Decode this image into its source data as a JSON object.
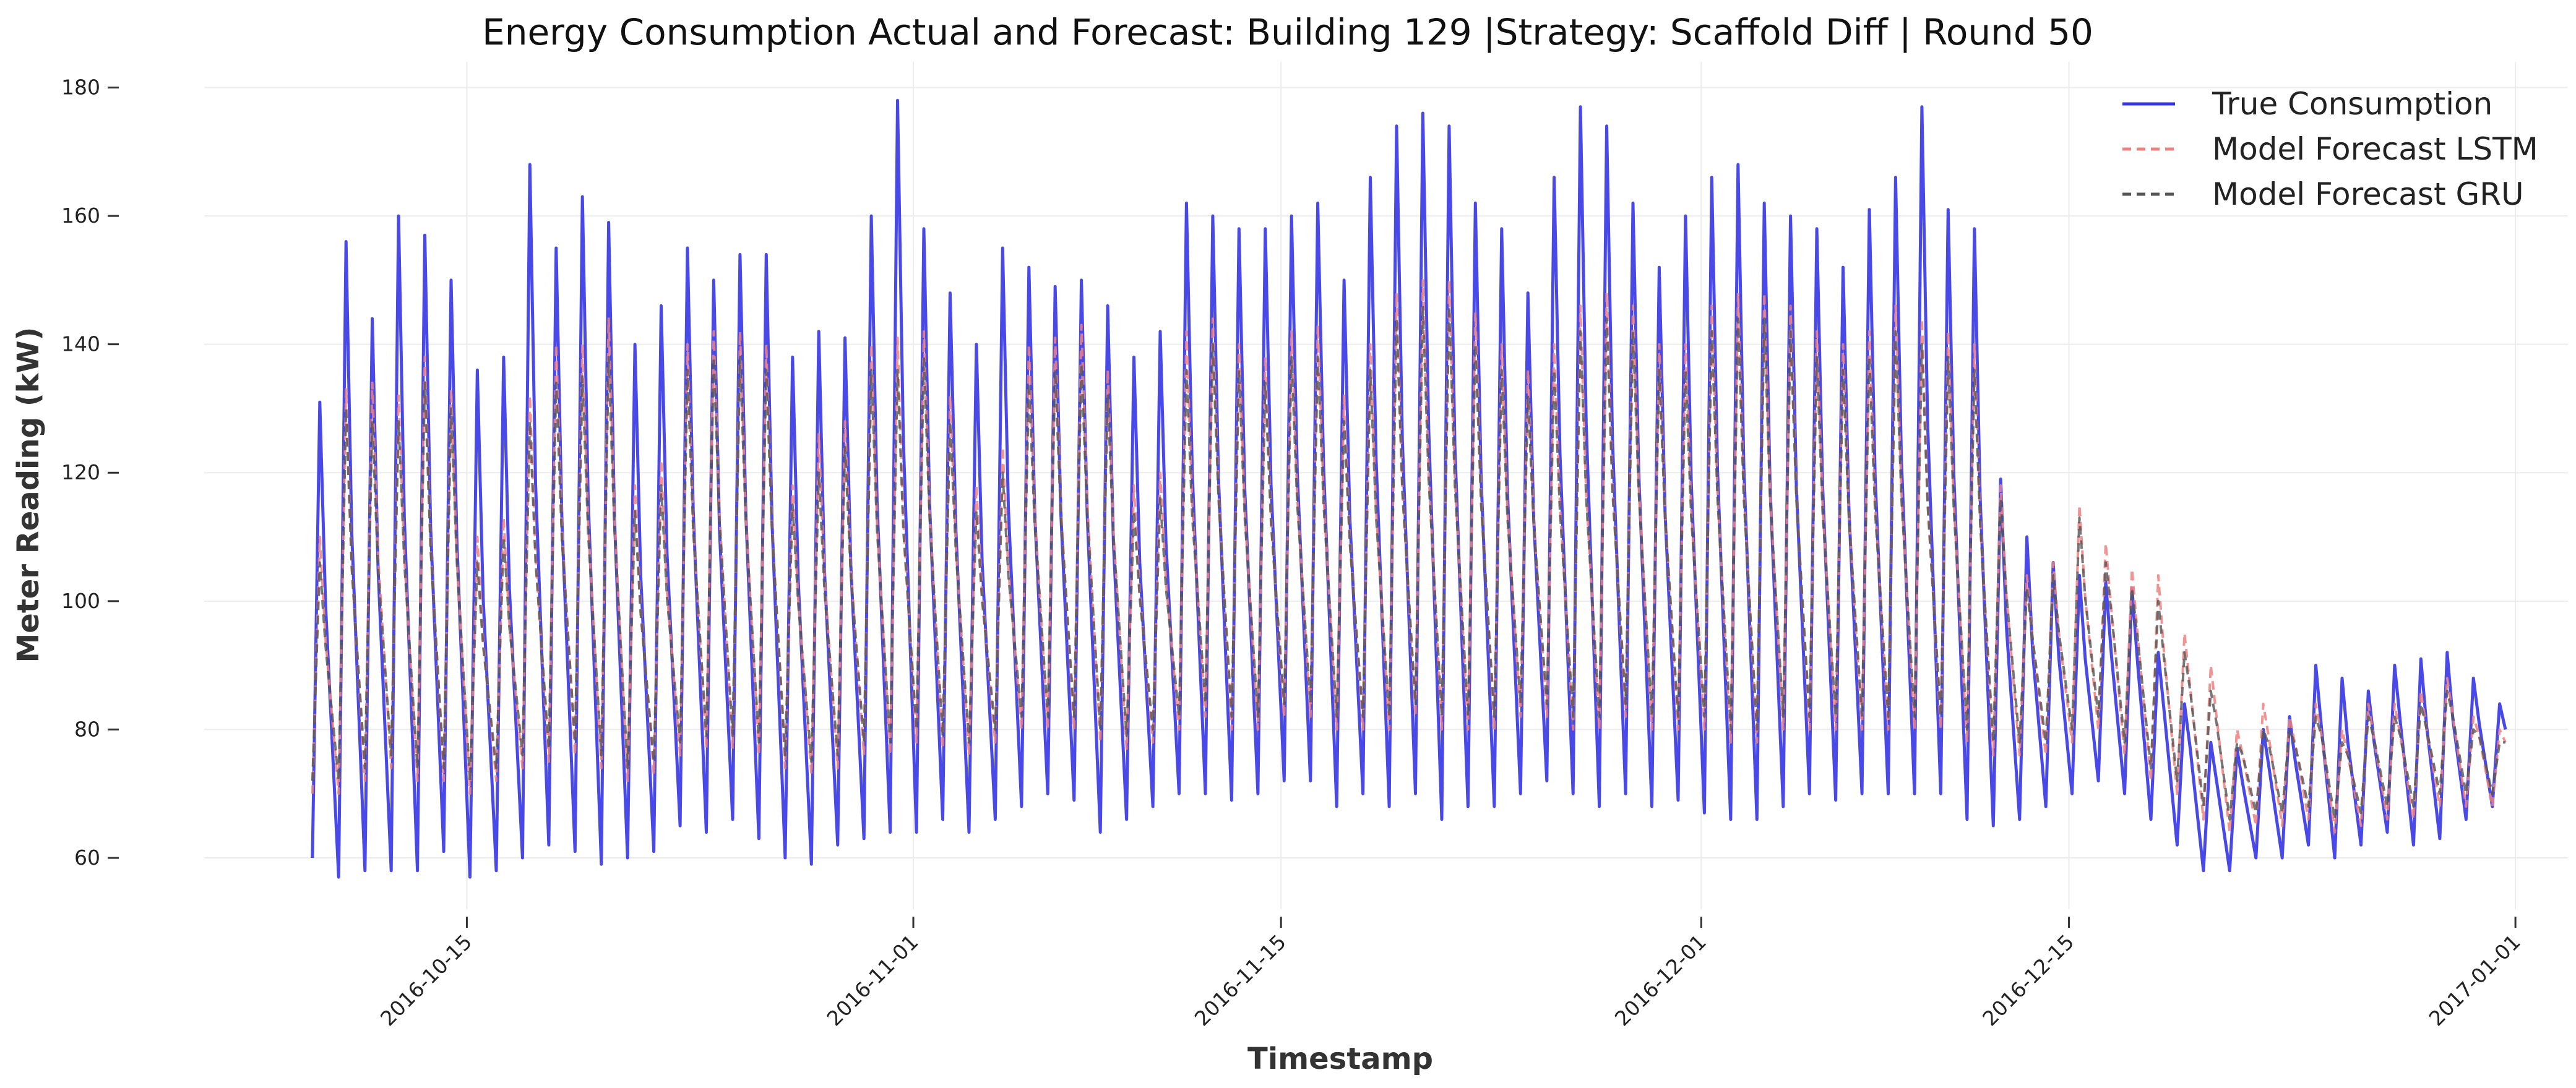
{
  "chart_data": {
    "type": "line",
    "title": "Energy Consumption Actual and Forecast: Building 129 |Strategy: Scaffold Diff | Round 50",
    "xlabel": "Timestamp",
    "ylabel": "Meter Reading (kW)",
    "x_range": [
      "2016-10-05",
      "2017-01-03"
    ],
    "ylim": [
      52,
      184
    ],
    "grid": true,
    "legend_position": "top-right",
    "x_ticks": [
      "2016-10-15",
      "2016-11-01",
      "2016-11-15",
      "2016-12-01",
      "2016-12-15",
      "2017-01-01"
    ],
    "y_ticks": [
      60,
      80,
      100,
      120,
      140,
      160,
      180
    ],
    "series": [
      {
        "name": "True Consumption",
        "color": "#3535e6",
        "style": "solid",
        "x": [
          "2016-10-09",
          "2016-10-10",
          "2016-10-11",
          "2016-10-12",
          "2016-10-13",
          "2016-10-14",
          "2016-10-15",
          "2016-10-16",
          "2016-10-17",
          "2016-10-18",
          "2016-10-19",
          "2016-10-20",
          "2016-10-21",
          "2016-10-22",
          "2016-10-23",
          "2016-10-24",
          "2016-10-25",
          "2016-10-26",
          "2016-10-27",
          "2016-10-28",
          "2016-10-29",
          "2016-10-30",
          "2016-10-31",
          "2016-11-01",
          "2016-11-02",
          "2016-11-03",
          "2016-11-04",
          "2016-11-05",
          "2016-11-06",
          "2016-11-07",
          "2016-11-08",
          "2016-11-09",
          "2016-11-10",
          "2016-11-11",
          "2016-11-12",
          "2016-11-13",
          "2016-11-14",
          "2016-11-15",
          "2016-11-16",
          "2016-11-17",
          "2016-11-18",
          "2016-11-19",
          "2016-11-20",
          "2016-11-21",
          "2016-11-22",
          "2016-11-23",
          "2016-11-24",
          "2016-11-25",
          "2016-11-26",
          "2016-11-27",
          "2016-11-28",
          "2016-11-29",
          "2016-11-30",
          "2016-12-01",
          "2016-12-02",
          "2016-12-03",
          "2016-12-04",
          "2016-12-05",
          "2016-12-06",
          "2016-12-07",
          "2016-12-08",
          "2016-12-09",
          "2016-12-10",
          "2016-12-11",
          "2016-12-12",
          "2016-12-13",
          "2016-12-14",
          "2016-12-15",
          "2016-12-16",
          "2016-12-17",
          "2016-12-18",
          "2016-12-19",
          "2016-12-20",
          "2016-12-21",
          "2016-12-22",
          "2016-12-23",
          "2016-12-24",
          "2016-12-25",
          "2016-12-26",
          "2016-12-27",
          "2016-12-28",
          "2016-12-29",
          "2016-12-30",
          "2016-12-31"
        ],
        "peaks": [
          131,
          156,
          144,
          160,
          157,
          150,
          136,
          138,
          168,
          155,
          163,
          159,
          140,
          146,
          155,
          150,
          154,
          154,
          138,
          142,
          141,
          160,
          178,
          158,
          148,
          140,
          155,
          152,
          149,
          150,
          146,
          138,
          142,
          162,
          160,
          158,
          158,
          160,
          162,
          150,
          166,
          174,
          176,
          174,
          162,
          158,
          148,
          166,
          177,
          174,
          162,
          152,
          160,
          166,
          168,
          162,
          160,
          158,
          152,
          161,
          166,
          177,
          161,
          158,
          119,
          110,
          106,
          104,
          103,
          102,
          92,
          84,
          78,
          77,
          80,
          82,
          90,
          88,
          86,
          90,
          91,
          92,
          88,
          84
        ],
        "troughs": [
          60,
          57,
          58,
          58,
          58,
          61,
          57,
          58,
          60,
          62,
          61,
          59,
          60,
          61,
          65,
          64,
          66,
          63,
          60,
          59,
          62,
          63,
          64,
          64,
          66,
          64,
          66,
          68,
          70,
          69,
          64,
          66,
          68,
          70,
          70,
          69,
          70,
          72,
          72,
          68,
          70,
          68,
          70,
          66,
          68,
          68,
          70,
          72,
          70,
          68,
          70,
          68,
          69,
          67,
          66,
          66,
          68,
          70,
          69,
          70,
          70,
          70,
          70,
          66,
          65,
          66,
          68,
          70,
          72,
          70,
          66,
          62,
          58,
          58,
          60,
          60,
          62,
          60,
          62,
          64,
          62,
          63,
          66,
          68
        ]
      },
      {
        "name": "Model Forecast LSTM",
        "color": "#f08080",
        "style": "dashed",
        "x": [
          "2016-10-09",
          "2016-10-10",
          "2016-10-11",
          "2016-10-12",
          "2016-10-13",
          "2016-10-14",
          "2016-10-15",
          "2016-10-16",
          "2016-10-17",
          "2016-10-18",
          "2016-10-19",
          "2016-10-20",
          "2016-10-21",
          "2016-10-22",
          "2016-10-23",
          "2016-10-24",
          "2016-10-25",
          "2016-10-26",
          "2016-10-27",
          "2016-10-28",
          "2016-10-29",
          "2016-10-30",
          "2016-10-31",
          "2016-11-01",
          "2016-11-02",
          "2016-11-03",
          "2016-11-04",
          "2016-11-05",
          "2016-11-06",
          "2016-11-07",
          "2016-11-08",
          "2016-11-09",
          "2016-11-10",
          "2016-11-11",
          "2016-11-12",
          "2016-11-13",
          "2016-11-14",
          "2016-11-15",
          "2016-11-16",
          "2016-11-17",
          "2016-11-18",
          "2016-11-19",
          "2016-11-20",
          "2016-11-21",
          "2016-11-22",
          "2016-11-23",
          "2016-11-24",
          "2016-11-25",
          "2016-11-26",
          "2016-11-27",
          "2016-11-28",
          "2016-11-29",
          "2016-11-30",
          "2016-12-01",
          "2016-12-02",
          "2016-12-03",
          "2016-12-04",
          "2016-12-05",
          "2016-12-06",
          "2016-12-07",
          "2016-12-08",
          "2016-12-09",
          "2016-12-10",
          "2016-12-11",
          "2016-12-12",
          "2016-12-13",
          "2016-12-14",
          "2016-12-15",
          "2016-12-16",
          "2016-12-17",
          "2016-12-18",
          "2016-12-19",
          "2016-12-20",
          "2016-12-21",
          "2016-12-22",
          "2016-12-23",
          "2016-12-24",
          "2016-12-25",
          "2016-12-26",
          "2016-12-27",
          "2016-12-28",
          "2016-12-29",
          "2016-12-30",
          "2016-12-31"
        ],
        "peaks": [
          110,
          133,
          134,
          132,
          138,
          133,
          110,
          113,
          132,
          140,
          140,
          144,
          118,
          122,
          140,
          142,
          142,
          140,
          118,
          126,
          128,
          140,
          141,
          142,
          132,
          118,
          124,
          140,
          141,
          143,
          136,
          118,
          120,
          142,
          144,
          140,
          138,
          142,
          143,
          132,
          140,
          148,
          150,
          150,
          145,
          140,
          136,
          140,
          146,
          148,
          146,
          140,
          140,
          146,
          148,
          148,
          146,
          142,
          140,
          142,
          146,
          144,
          142,
          140,
          118,
          104,
          106,
          115,
          109,
          105,
          104,
          95,
          90,
          80,
          84,
          82,
          84,
          80,
          84,
          84,
          86,
          88,
          82,
          80
        ],
        "troughs": [
          70,
          70,
          72,
          74,
          72,
          72,
          70,
          72,
          74,
          75,
          76,
          74,
          72,
          73,
          76,
          77,
          77,
          76,
          74,
          73,
          74,
          76,
          76,
          78,
          77,
          76,
          78,
          80,
          80,
          80,
          78,
          77,
          78,
          80,
          82,
          80,
          80,
          82,
          82,
          80,
          80,
          80,
          82,
          80,
          80,
          80,
          82,
          82,
          80,
          80,
          82,
          80,
          80,
          80,
          78,
          78,
          80,
          80,
          80,
          80,
          80,
          80,
          80,
          78,
          76,
          76,
          76,
          78,
          80,
          76,
          72,
          70,
          66,
          64,
          65,
          65,
          66,
          64,
          65,
          66,
          66,
          68,
          68,
          68
        ]
      },
      {
        "name": "Model Forecast GRU",
        "color": "#555555",
        "style": "dashed",
        "x": [
          "2016-10-09",
          "2016-10-10",
          "2016-10-11",
          "2016-10-12",
          "2016-10-13",
          "2016-10-14",
          "2016-10-15",
          "2016-10-16",
          "2016-10-17",
          "2016-10-18",
          "2016-10-19",
          "2016-10-20",
          "2016-10-21",
          "2016-10-22",
          "2016-10-23",
          "2016-10-24",
          "2016-10-25",
          "2016-10-26",
          "2016-10-27",
          "2016-10-28",
          "2016-10-29",
          "2016-10-30",
          "2016-10-31",
          "2016-11-01",
          "2016-11-02",
          "2016-11-03",
          "2016-11-04",
          "2016-11-05",
          "2016-11-06",
          "2016-11-07",
          "2016-11-08",
          "2016-11-09",
          "2016-11-10",
          "2016-11-11",
          "2016-11-12",
          "2016-11-13",
          "2016-11-14",
          "2016-11-15",
          "2016-11-16",
          "2016-11-17",
          "2016-11-18",
          "2016-11-19",
          "2016-11-20",
          "2016-11-21",
          "2016-11-22",
          "2016-11-23",
          "2016-11-24",
          "2016-11-25",
          "2016-11-26",
          "2016-11-27",
          "2016-11-28",
          "2016-11-29",
          "2016-11-30",
          "2016-12-01",
          "2016-12-02",
          "2016-12-03",
          "2016-12-04",
          "2016-12-05",
          "2016-12-06",
          "2016-12-07",
          "2016-12-08",
          "2016-12-09",
          "2016-12-10",
          "2016-12-11",
          "2016-12-12",
          "2016-12-13",
          "2016-12-14",
          "2016-12-15",
          "2016-12-16",
          "2016-12-17",
          "2016-12-18",
          "2016-12-19",
          "2016-12-20",
          "2016-12-21",
          "2016-12-22",
          "2016-12-23",
          "2016-12-24",
          "2016-12-25",
          "2016-12-26",
          "2016-12-27",
          "2016-12-28",
          "2016-12-29",
          "2016-12-30",
          "2016-12-31"
        ],
        "peaks": [
          106,
          130,
          128,
          128,
          134,
          130,
          106,
          110,
          128,
          134,
          135,
          138,
          114,
          118,
          136,
          138,
          138,
          136,
          115,
          120,
          124,
          136,
          136,
          138,
          128,
          114,
          120,
          134,
          136,
          137,
          132,
          114,
          116,
          136,
          140,
          136,
          134,
          138,
          138,
          128,
          136,
          144,
          146,
          146,
          140,
          136,
          132,
          136,
          142,
          144,
          142,
          136,
          136,
          142,
          144,
          144,
          142,
          138,
          136,
          138,
          142,
          140,
          138,
          136,
          116,
          102,
          104,
          113,
          106,
          102,
          100,
          92,
          86,
          78,
          80,
          80,
          82,
          78,
          82,
          82,
          84,
          86,
          80,
          78
        ],
        "troughs": [
          72,
          72,
          74,
          76,
          74,
          74,
          72,
          74,
          76,
          77,
          78,
          76,
          74,
          75,
          78,
          79,
          79,
          78,
          76,
          75,
          76,
          78,
          78,
          80,
          79,
          78,
          80,
          82,
          82,
          82,
          80,
          79,
          80,
          82,
          84,
          82,
          82,
          84,
          84,
          82,
          82,
          82,
          84,
          82,
          82,
          82,
          84,
          84,
          82,
          82,
          84,
          82,
          82,
          82,
          80,
          80,
          82,
          82,
          82,
          82,
          82,
          82,
          82,
          80,
          78,
          78,
          78,
          80,
          82,
          78,
          74,
          72,
          68,
          66,
          67,
          67,
          68,
          66,
          67,
          68,
          68,
          70,
          70,
          70
        ]
      }
    ]
  }
}
